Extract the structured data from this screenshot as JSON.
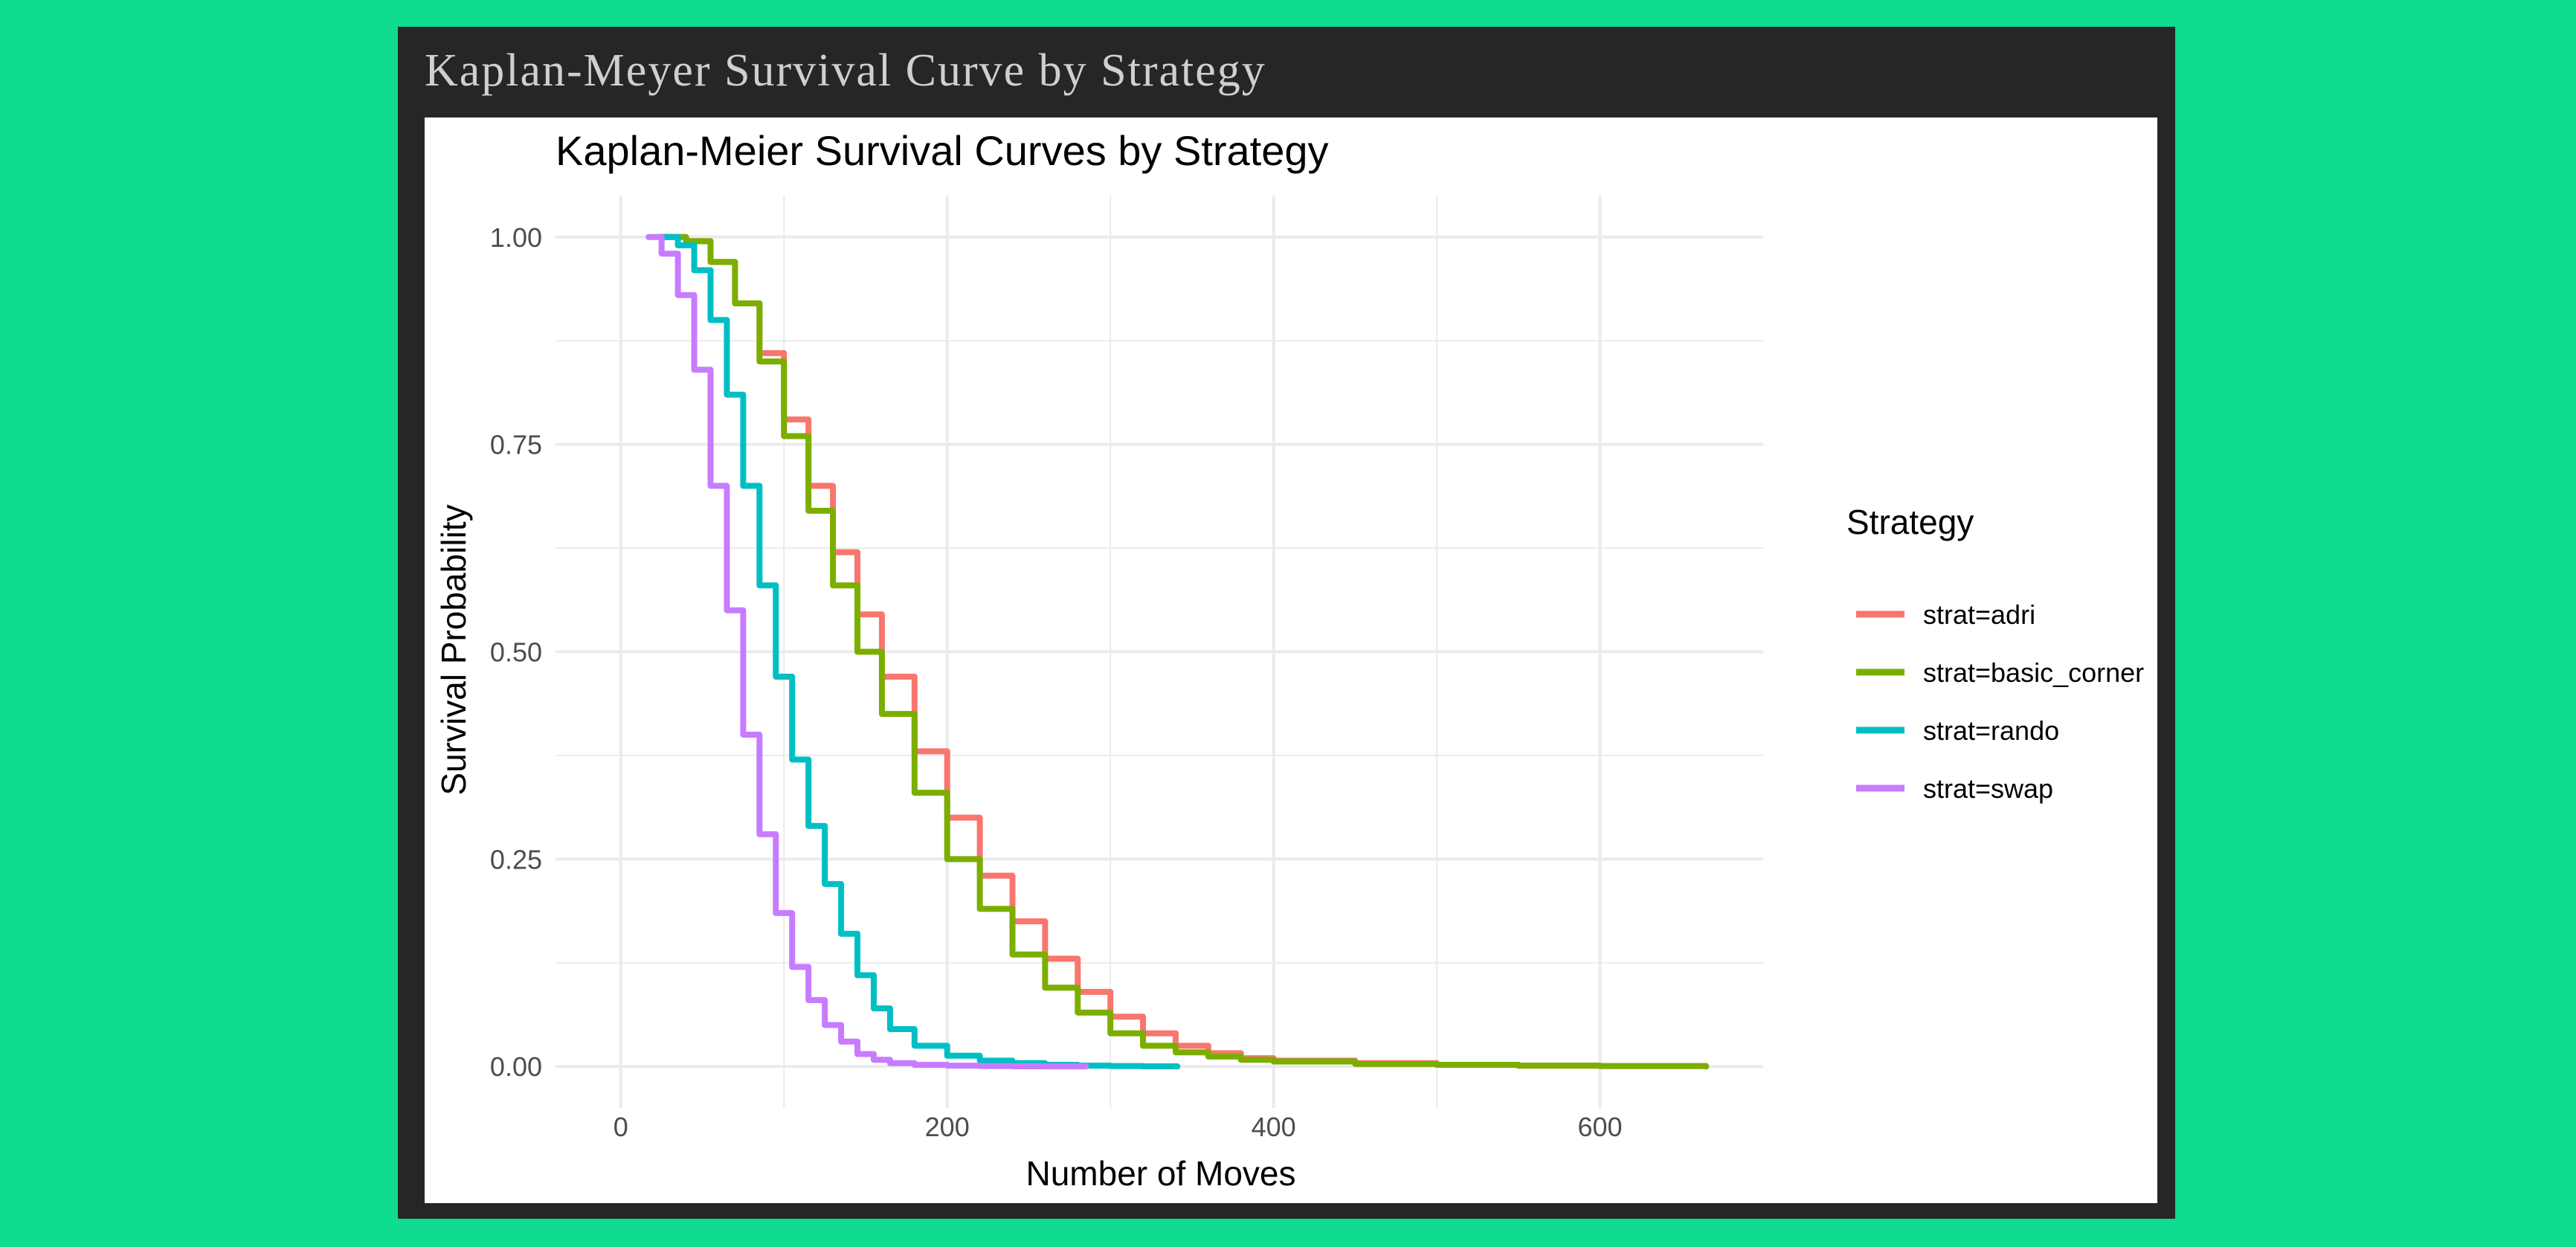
{
  "window": {
    "title": "Kaplan-Meyer Survival Curve by Strategy"
  },
  "colors": {
    "background": "#0fdc8e",
    "frame": "#262626",
    "grid": "#ebebeb"
  },
  "chart_data": {
    "type": "line",
    "step": true,
    "title": "Kaplan-Meier Survival Curves by Strategy",
    "xlabel": "Number of Moves",
    "ylabel": "Survival Probability",
    "xlim": [
      -40,
      700
    ],
    "ylim": [
      -0.05,
      1.05
    ],
    "x_ticks": [
      0,
      200,
      400,
      600
    ],
    "x_tick_labels": [
      "0",
      "200",
      "400",
      "600"
    ],
    "y_ticks": [
      0,
      0.25,
      0.5,
      0.75,
      1
    ],
    "y_tick_labels": [
      "0.00",
      "0.25",
      "0.50",
      "0.75",
      "1.00"
    ],
    "grid": true,
    "legend": {
      "title": "Strategy",
      "position": "right"
    },
    "series": [
      {
        "name": "strat=adri",
        "color": "#f8766d",
        "x": [
          25,
          40,
          55,
          70,
          85,
          100,
          115,
          130,
          145,
          160,
          180,
          200,
          220,
          240,
          260,
          280,
          300,
          320,
          340,
          360,
          380,
          400,
          450,
          500,
          550,
          600,
          665
        ],
        "y": [
          1.0,
          0.995,
          0.97,
          0.92,
          0.86,
          0.78,
          0.7,
          0.62,
          0.545,
          0.47,
          0.38,
          0.3,
          0.23,
          0.175,
          0.13,
          0.09,
          0.06,
          0.04,
          0.025,
          0.016,
          0.01,
          0.007,
          0.004,
          0.002,
          0.001,
          0.0005,
          0.0
        ]
      },
      {
        "name": "strat=basic_corner",
        "color": "#7cae00",
        "x": [
          25,
          40,
          55,
          70,
          85,
          100,
          115,
          130,
          145,
          160,
          180,
          200,
          220,
          240,
          260,
          280,
          300,
          320,
          340,
          360,
          380,
          400,
          450,
          500,
          550,
          600,
          665
        ],
        "y": [
          1.0,
          0.995,
          0.97,
          0.92,
          0.85,
          0.76,
          0.67,
          0.58,
          0.5,
          0.425,
          0.33,
          0.25,
          0.19,
          0.135,
          0.095,
          0.065,
          0.04,
          0.025,
          0.017,
          0.012,
          0.008,
          0.006,
          0.003,
          0.002,
          0.001,
          0.0005,
          0.0
        ]
      },
      {
        "name": "strat=rando",
        "color": "#00bfc4",
        "x": [
          22,
          35,
          45,
          55,
          65,
          75,
          85,
          95,
          105,
          115,
          125,
          135,
          145,
          155,
          165,
          180,
          200,
          220,
          240,
          260,
          280,
          300,
          320,
          341
        ],
        "y": [
          1.0,
          0.99,
          0.96,
          0.9,
          0.81,
          0.7,
          0.58,
          0.47,
          0.37,
          0.29,
          0.22,
          0.16,
          0.11,
          0.07,
          0.045,
          0.025,
          0.013,
          0.007,
          0.004,
          0.002,
          0.001,
          0.0005,
          0.0002,
          0.0
        ]
      },
      {
        "name": "strat=swap",
        "color": "#c77cff",
        "x": [
          17,
          25,
          35,
          45,
          55,
          65,
          75,
          85,
          95,
          105,
          115,
          125,
          135,
          145,
          155,
          165,
          180,
          200,
          220,
          240,
          260,
          285
        ],
        "y": [
          1.0,
          0.98,
          0.93,
          0.84,
          0.7,
          0.55,
          0.4,
          0.28,
          0.185,
          0.12,
          0.08,
          0.05,
          0.03,
          0.015,
          0.008,
          0.004,
          0.002,
          0.001,
          0.0005,
          0.0002,
          0.0001,
          0.0
        ]
      }
    ]
  }
}
